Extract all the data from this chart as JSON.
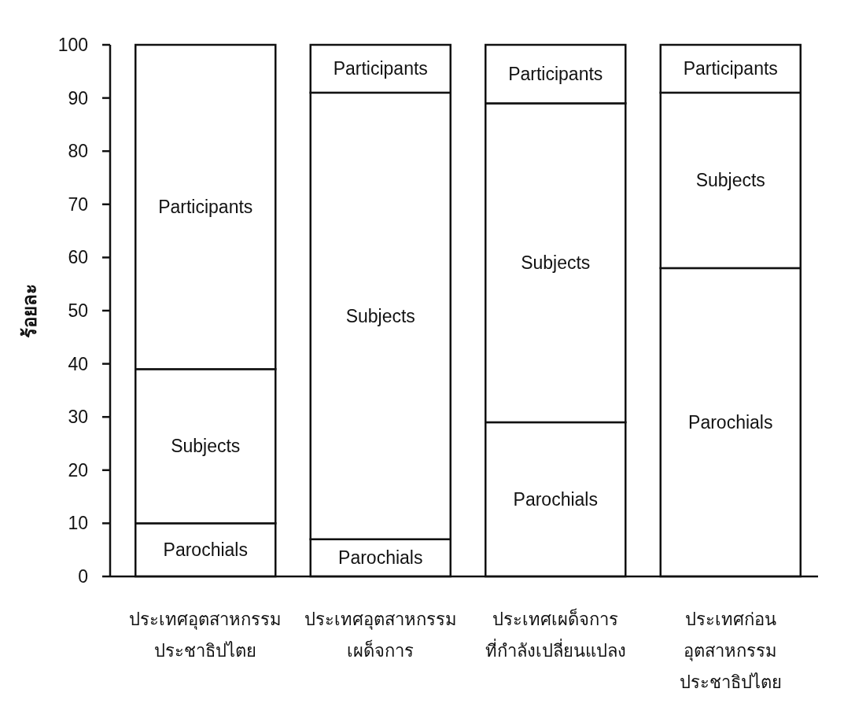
{
  "chart_data": {
    "type": "bar",
    "stacked": true,
    "ylabel": "ร้อยละ",
    "categories": [
      "ประเทศอุตสาหกรรม\nประชาธิปไตย",
      "ประเทศอุตสาหกรรม\nเผด็จการ",
      "ประเทศเผด็จการ\nที่กำลังเปลี่ยนแปลง",
      "ประเทศก่อน\nอุตสาหกรรม\nประชาธิปไตย"
    ],
    "series": [
      {
        "name": "Parochials",
        "color": "#ffffff",
        "values": [
          10,
          7,
          29,
          58
        ]
      },
      {
        "name": "Subjects",
        "color": "#ffffff",
        "values": [
          29,
          84,
          60,
          33
        ]
      },
      {
        "name": "Participants",
        "color": "#ffffff",
        "values": [
          61,
          9,
          11,
          9
        ]
      }
    ],
    "ylim": [
      0,
      100
    ],
    "yticks": [
      0,
      10,
      20,
      30,
      40,
      50,
      60,
      70,
      80,
      90,
      100
    ],
    "grid": false
  }
}
